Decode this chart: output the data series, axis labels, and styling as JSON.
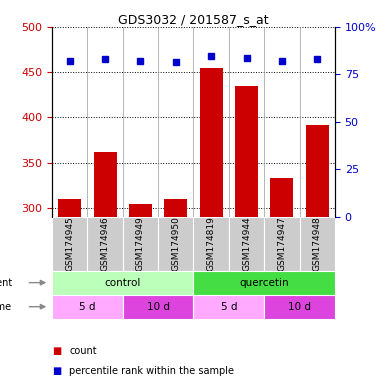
{
  "title": "GDS3032 / 201587_s_at",
  "samples": [
    "GSM174945",
    "GSM174946",
    "GSM174949",
    "GSM174950",
    "GSM174819",
    "GSM174944",
    "GSM174947",
    "GSM174948"
  ],
  "counts": [
    310,
    362,
    304,
    310,
    455,
    435,
    333,
    392
  ],
  "percentile_ranks": [
    462,
    465,
    462,
    461,
    468,
    466,
    462,
    465
  ],
  "ylim_left": [
    290,
    500
  ],
  "ylim_right": [
    0,
    100
  ],
  "yticks_left": [
    300,
    350,
    400,
    450,
    500
  ],
  "yticks_right": [
    0,
    25,
    50,
    75,
    100
  ],
  "bar_color": "#cc0000",
  "dot_color": "#0000cc",
  "agent_groups": [
    {
      "label": "control",
      "start": 0,
      "end": 4,
      "color": "#bbffbb"
    },
    {
      "label": "quercetin",
      "start": 4,
      "end": 8,
      "color": "#44dd44"
    }
  ],
  "time_groups": [
    {
      "label": "5 d",
      "start": 0,
      "end": 2,
      "color": "#ffaaff"
    },
    {
      "label": "10 d",
      "start": 2,
      "end": 4,
      "color": "#dd44dd"
    },
    {
      "label": "5 d",
      "start": 4,
      "end": 6,
      "color": "#ffaaff"
    },
    {
      "label": "10 d",
      "start": 6,
      "end": 8,
      "color": "#dd44dd"
    }
  ],
  "legend_count_color": "#cc0000",
  "legend_dot_color": "#0000cc",
  "tick_label_color_left": "#cc0000",
  "tick_label_color_right": "#0000cc",
  "sample_bg_color": "#cccccc",
  "fig_width": 3.85,
  "fig_height": 3.84
}
